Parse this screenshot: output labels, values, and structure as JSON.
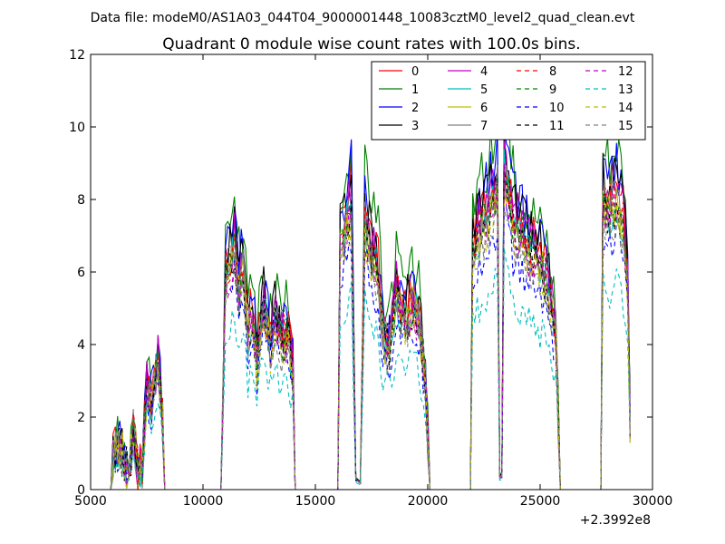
{
  "chart_data": {
    "type": "line",
    "suptitle": "Data file: modeM0/AS1A03_044T04_9000001448_10083cztM0_level2_quad_clean.evt",
    "title": "Quadrant 0 module wise count rates with 100.0s bins.",
    "xlabel": "",
    "ylabel": "",
    "x_offset_label": "+2.3992e8",
    "xlim": [
      5000,
      30000
    ],
    "ylim": [
      0,
      12
    ],
    "xticks": [
      5000,
      10000,
      15000,
      20000,
      25000,
      30000
    ],
    "yticks": [
      0,
      2,
      4,
      6,
      8,
      10,
      12
    ],
    "grid": false,
    "legend_placement": "top-right",
    "colors": [
      "#ff0000",
      "#008000",
      "#0000ff",
      "#000000",
      "#c000c0",
      "#00bfbf",
      "#bfbf00",
      "#808080"
    ],
    "profile_points": [
      [
        5900,
        0
      ],
      [
        6000,
        1.0
      ],
      [
        6200,
        1.3
      ],
      [
        6500,
        0.9
      ],
      [
        6700,
        0.4
      ],
      [
        6900,
        1.8
      ],
      [
        7100,
        0.6
      ],
      [
        7300,
        0.7
      ],
      [
        7500,
        3.0
      ],
      [
        7700,
        2.5
      ],
      [
        8000,
        3.8
      ],
      [
        8200,
        2.0
      ],
      [
        8300,
        0
      ],
      [
        10800,
        0
      ],
      [
        11000,
        6.2
      ],
      [
        11200,
        6.6
      ],
      [
        11400,
        7.2
      ],
      [
        11600,
        5.8
      ],
      [
        11800,
        6.5
      ],
      [
        12000,
        4.5
      ],
      [
        12200,
        5.2
      ],
      [
        12400,
        3.8
      ],
      [
        12700,
        5.4
      ],
      [
        13000,
        4.2
      ],
      [
        13200,
        5.0
      ],
      [
        13500,
        4.4
      ],
      [
        13800,
        4.6
      ],
      [
        14000,
        3.5
      ],
      [
        14100,
        0
      ],
      [
        16000,
        0
      ],
      [
        16100,
        7.2
      ],
      [
        16300,
        7.5
      ],
      [
        16600,
        8.5
      ],
      [
        16800,
        0.3
      ],
      [
        17000,
        0.2
      ],
      [
        17200,
        7.8
      ],
      [
        17500,
        7.0
      ],
      [
        17800,
        6.3
      ],
      [
        18000,
        4.5
      ],
      [
        18300,
        4.2
      ],
      [
        18600,
        5.8
      ],
      [
        18900,
        4.9
      ],
      [
        19300,
        5.4
      ],
      [
        19600,
        5.0
      ],
      [
        19900,
        3.2
      ],
      [
        20100,
        0
      ],
      [
        21900,
        0
      ],
      [
        22000,
        7.3
      ],
      [
        22300,
        7.6
      ],
      [
        22700,
        8.1
      ],
      [
        23100,
        8.9
      ],
      [
        23200,
        0.4
      ],
      [
        23300,
        0.4
      ],
      [
        23400,
        9.5
      ],
      [
        23800,
        7.8
      ],
      [
        24300,
        7.2
      ],
      [
        24800,
        6.8
      ],
      [
        25300,
        6.2
      ],
      [
        25700,
        4.6
      ],
      [
        25900,
        0
      ],
      [
        27700,
        0
      ],
      [
        27800,
        8.5
      ],
      [
        28100,
        8.2
      ],
      [
        28400,
        8.6
      ],
      [
        28700,
        7.9
      ],
      [
        28900,
        6.0
      ],
      [
        29000,
        2.0
      ]
    ],
    "series": [
      {
        "name": "0",
        "scale": 1.0,
        "color_index": 0,
        "dashed": false
      },
      {
        "name": "1",
        "scale": 1.12,
        "color_index": 1,
        "dashed": false
      },
      {
        "name": "2",
        "scale": 1.05,
        "color_index": 2,
        "dashed": false
      },
      {
        "name": "3",
        "scale": 1.02,
        "color_index": 3,
        "dashed": false
      },
      {
        "name": "4",
        "scale": 0.97,
        "color_index": 4,
        "dashed": false
      },
      {
        "name": "5",
        "scale": 0.93,
        "color_index": 5,
        "dashed": false
      },
      {
        "name": "6",
        "scale": 0.92,
        "color_index": 6,
        "dashed": false
      },
      {
        "name": "7",
        "scale": 0.94,
        "color_index": 7,
        "dashed": false
      },
      {
        "name": "8",
        "scale": 0.95,
        "color_index": 0,
        "dashed": true
      },
      {
        "name": "9",
        "scale": 0.93,
        "color_index": 1,
        "dashed": true
      },
      {
        "name": "10",
        "scale": 0.82,
        "color_index": 2,
        "dashed": true
      },
      {
        "name": "11",
        "scale": 0.92,
        "color_index": 3,
        "dashed": true
      },
      {
        "name": "12",
        "scale": 0.91,
        "color_index": 4,
        "dashed": true
      },
      {
        "name": "13",
        "scale": 0.66,
        "color_index": 5,
        "dashed": true
      },
      {
        "name": "14",
        "scale": 0.89,
        "color_index": 6,
        "dashed": true
      },
      {
        "name": "15",
        "scale": 0.87,
        "color_index": 7,
        "dashed": true
      }
    ]
  }
}
